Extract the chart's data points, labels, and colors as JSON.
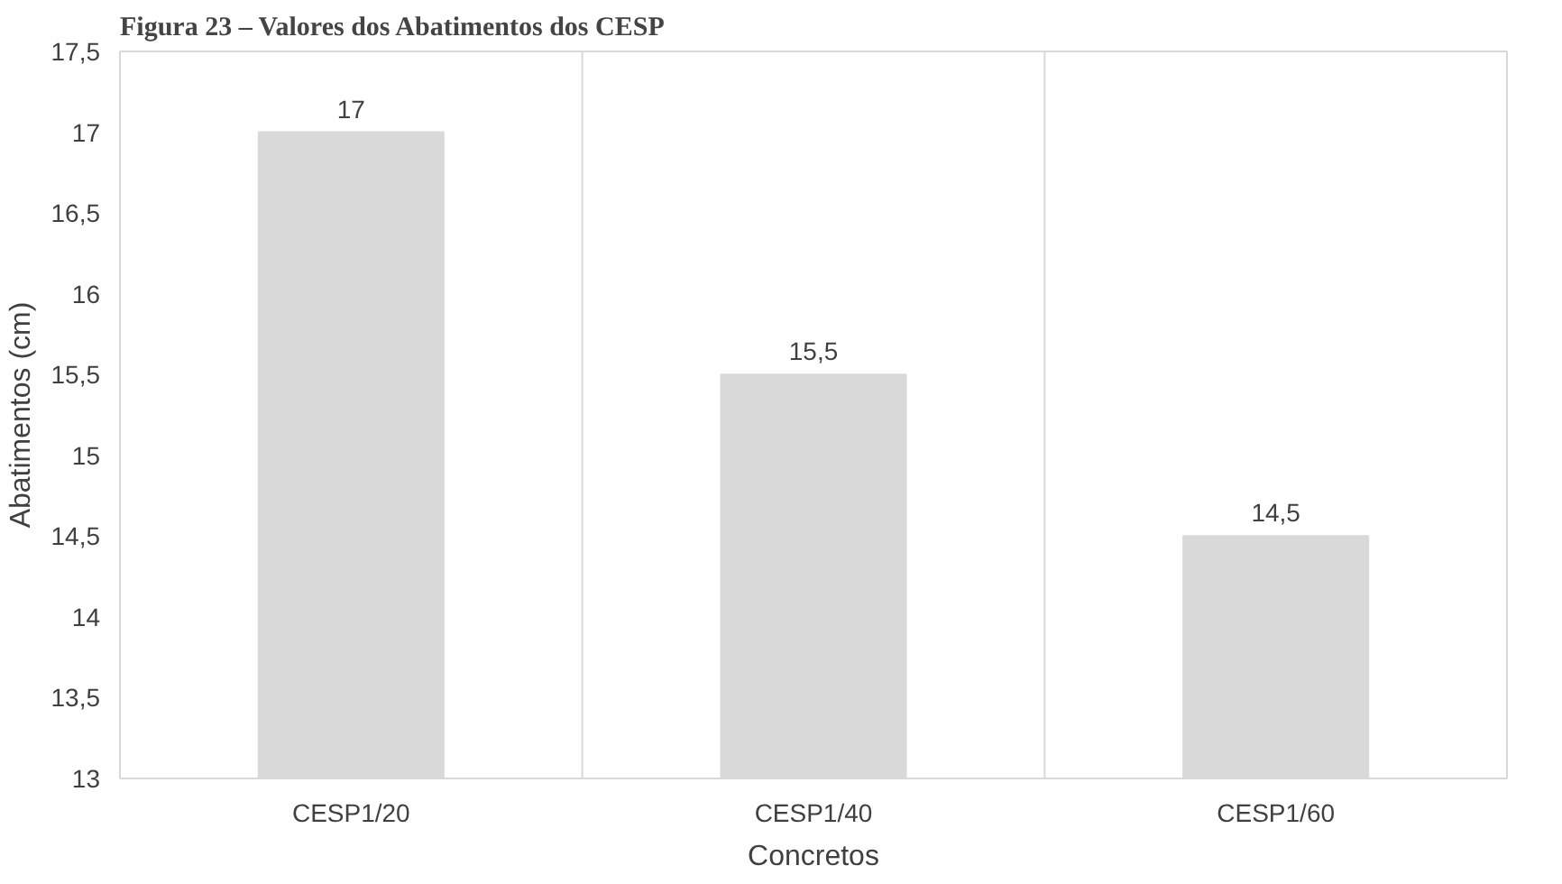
{
  "chart_data": {
    "type": "bar",
    "title": "Figura 23 – Valores dos Abatimentos dos CESP",
    "xlabel": "Concretos",
    "ylabel": "Abatimentos (cm)",
    "categories": [
      "CESP1/20",
      "CESP1/40",
      "CESP1/60"
    ],
    "values": [
      17,
      15.5,
      14.5
    ],
    "color": "#d9d9d9",
    "value_labels": [
      "17",
      "15,5",
      "14,5"
    ],
    "ylim": [
      13,
      17.5
    ],
    "yticks": [
      13,
      {
        "value": 13.5,
        "label": "13,5"
      },
      14,
      {
        "value": 14.5,
        "label": "14,5"
      },
      15,
      {
        "value": 15.5,
        "label": "15,5"
      },
      16,
      {
        "value": 16.5,
        "label": "16,5"
      },
      17,
      {
        "value": 17.5,
        "label": "17,5"
      }
    ],
    "grid": "x"
  }
}
